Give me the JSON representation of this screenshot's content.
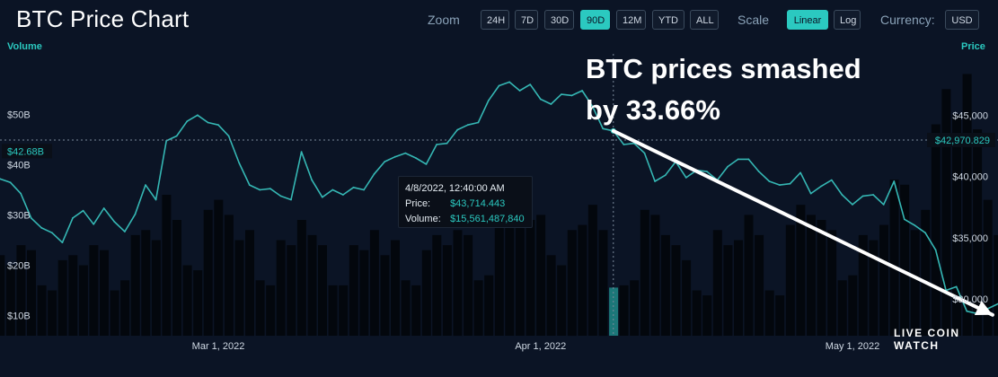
{
  "header": {
    "title": "BTC Price Chart",
    "zoom_label": "Zoom",
    "zoom_options": [
      "24H",
      "7D",
      "30D",
      "90D",
      "12M",
      "YTD",
      "ALL"
    ],
    "zoom_selected": "90D",
    "scale_label": "Scale",
    "scale_options": [
      "Linear",
      "Log"
    ],
    "scale_selected": "Linear",
    "currency_label": "Currency:",
    "currency_value": "USD"
  },
  "colors": {
    "background": "#0b1425",
    "accent": "#2bc9c0",
    "price_line": "#35b7b4",
    "volume_bars": "#03070d",
    "annotation_arrow": "#ffffff"
  },
  "tooltip": {
    "datetime": "4/8/2022, 12:40:00 AM",
    "price_label": "Price:",
    "price_value": "$43,714.443",
    "volume_label": "Volume:",
    "volume_value": "$15,561,487,840"
  },
  "annotation": {
    "line1": "BTC prices smashed",
    "line2": "by 33.66%"
  },
  "watermark": "LIVE COIN WATCH",
  "chart_data": {
    "type": "line",
    "title": "BTC Price Chart",
    "x_range": [
      "2022-02-08",
      "2022-05-15"
    ],
    "x_tick_labels": [
      {
        "date": "2022-03-01",
        "label": "Mar 1, 2022"
      },
      {
        "date": "2022-04-01",
        "label": "Apr 1, 2022"
      },
      {
        "date": "2022-05-01",
        "label": "May 1, 2022"
      }
    ],
    "left_axis": {
      "title": "Volume",
      "range": [
        6000000000,
        62000000000
      ],
      "tick_labels": [
        {
          "value": 10000000000,
          "label": "$10B"
        },
        {
          "value": 20000000000,
          "label": "$20B"
        },
        {
          "value": 30000000000,
          "label": "$30B"
        },
        {
          "value": 40000000000,
          "label": "$40B"
        },
        {
          "value": 50000000000,
          "label": "$50B"
        }
      ],
      "marker": {
        "value": 42680000000,
        "label": "$42.68B"
      }
    },
    "right_axis": {
      "title": "Price",
      "range": [
        27000,
        50000
      ],
      "tick_labels": [
        {
          "value": 30000,
          "label": "$30,000"
        },
        {
          "value": 35000,
          "label": "$35,000"
        },
        {
          "value": 40000,
          "label": "$40,000"
        },
        {
          "value": 45000,
          "label": "$45,000"
        }
      ],
      "marker": {
        "value": 42970.829,
        "label": "$42,970.829"
      }
    },
    "crosshair_date": "2022-04-08",
    "series": [
      {
        "name": "Price",
        "points": [
          [
            "2022-02-08",
            39800
          ],
          [
            "2022-02-09",
            39500
          ],
          [
            "2022-02-10",
            38600
          ],
          [
            "2022-02-11",
            36600
          ],
          [
            "2022-02-12",
            35800
          ],
          [
            "2022-02-13",
            35400
          ],
          [
            "2022-02-14",
            34600
          ],
          [
            "2022-02-15",
            36600
          ],
          [
            "2022-02-16",
            37200
          ],
          [
            "2022-02-17",
            36100
          ],
          [
            "2022-02-18",
            37400
          ],
          [
            "2022-02-19",
            36300
          ],
          [
            "2022-02-20",
            35500
          ],
          [
            "2022-02-21",
            36900
          ],
          [
            "2022-02-22",
            39300
          ],
          [
            "2022-02-23",
            38100
          ],
          [
            "2022-02-24",
            42900
          ],
          [
            "2022-02-25",
            43300
          ],
          [
            "2022-02-26",
            44500
          ],
          [
            "2022-02-27",
            45000
          ],
          [
            "2022-02-28",
            44400
          ],
          [
            "2022-03-01",
            44200
          ],
          [
            "2022-03-02",
            43300
          ],
          [
            "2022-03-03",
            41100
          ],
          [
            "2022-03-04",
            39300
          ],
          [
            "2022-03-05",
            38900
          ],
          [
            "2022-03-06",
            39000
          ],
          [
            "2022-03-07",
            38400
          ],
          [
            "2022-03-08",
            38100
          ],
          [
            "2022-03-09",
            42000
          ],
          [
            "2022-03-10",
            39700
          ],
          [
            "2022-03-11",
            38300
          ],
          [
            "2022-03-12",
            38900
          ],
          [
            "2022-03-13",
            38500
          ],
          [
            "2022-03-14",
            39100
          ],
          [
            "2022-03-15",
            38900
          ],
          [
            "2022-03-16",
            40200
          ],
          [
            "2022-03-17",
            41200
          ],
          [
            "2022-03-18",
            41600
          ],
          [
            "2022-03-19",
            41900
          ],
          [
            "2022-03-20",
            41500
          ],
          [
            "2022-03-21",
            41000
          ],
          [
            "2022-03-22",
            42600
          ],
          [
            "2022-03-23",
            42700
          ],
          [
            "2022-03-24",
            43800
          ],
          [
            "2022-03-25",
            44200
          ],
          [
            "2022-03-26",
            44400
          ],
          [
            "2022-03-27",
            46200
          ],
          [
            "2022-03-28",
            47400
          ],
          [
            "2022-03-29",
            47700
          ],
          [
            "2022-03-30",
            47000
          ],
          [
            "2022-03-31",
            47500
          ],
          [
            "2022-04-01",
            46300
          ],
          [
            "2022-04-02",
            45900
          ],
          [
            "2022-04-03",
            46700
          ],
          [
            "2022-04-04",
            46600
          ],
          [
            "2022-04-05",
            47000
          ],
          [
            "2022-04-06",
            45700
          ],
          [
            "2022-04-07",
            43900
          ],
          [
            "2022-04-08",
            43714
          ],
          [
            "2022-04-09",
            42600
          ],
          [
            "2022-04-10",
            42700
          ],
          [
            "2022-04-11",
            41900
          ],
          [
            "2022-04-12",
            39600
          ],
          [
            "2022-04-13",
            40100
          ],
          [
            "2022-04-14",
            41200
          ],
          [
            "2022-04-15",
            39900
          ],
          [
            "2022-04-16",
            40500
          ],
          [
            "2022-04-17",
            40400
          ],
          [
            "2022-04-18",
            39700
          ],
          [
            "2022-04-19",
            40800
          ],
          [
            "2022-04-20",
            41400
          ],
          [
            "2022-04-21",
            41400
          ],
          [
            "2022-04-22",
            40400
          ],
          [
            "2022-04-23",
            39600
          ],
          [
            "2022-04-24",
            39300
          ],
          [
            "2022-04-25",
            39400
          ],
          [
            "2022-04-26",
            40300
          ],
          [
            "2022-04-27",
            38600
          ],
          [
            "2022-04-28",
            39200
          ],
          [
            "2022-04-29",
            39700
          ],
          [
            "2022-04-30",
            38500
          ],
          [
            "2022-05-01",
            37700
          ],
          [
            "2022-05-02",
            38400
          ],
          [
            "2022-05-03",
            38500
          ],
          [
            "2022-05-04",
            37700
          ],
          [
            "2022-05-05",
            39600
          ],
          [
            "2022-05-06",
            36500
          ],
          [
            "2022-05-07",
            36000
          ],
          [
            "2022-05-08",
            35400
          ],
          [
            "2022-05-09",
            34000
          ],
          [
            "2022-05-10",
            30700
          ],
          [
            "2022-05-11",
            31000
          ],
          [
            "2022-05-12",
            29000
          ],
          [
            "2022-05-13",
            28800
          ],
          [
            "2022-05-14",
            29200
          ],
          [
            "2022-05-15",
            29600
          ]
        ]
      },
      {
        "name": "Volume",
        "type": "bar",
        "points": [
          [
            "2022-02-08",
            22000000000
          ],
          [
            "2022-02-09",
            20000000000
          ],
          [
            "2022-02-10",
            24000000000
          ],
          [
            "2022-02-11",
            23000000000
          ],
          [
            "2022-02-12",
            16000000000
          ],
          [
            "2022-02-13",
            15000000000
          ],
          [
            "2022-02-14",
            21000000000
          ],
          [
            "2022-02-15",
            22000000000
          ],
          [
            "2022-02-16",
            20000000000
          ],
          [
            "2022-02-17",
            24000000000
          ],
          [
            "2022-02-18",
            23000000000
          ],
          [
            "2022-02-19",
            15000000000
          ],
          [
            "2022-02-20",
            17000000000
          ],
          [
            "2022-02-21",
            26000000000
          ],
          [
            "2022-02-22",
            27000000000
          ],
          [
            "2022-02-23",
            25000000000
          ],
          [
            "2022-02-24",
            34000000000
          ],
          [
            "2022-02-25",
            29000000000
          ],
          [
            "2022-02-26",
            20000000000
          ],
          [
            "2022-02-27",
            19000000000
          ],
          [
            "2022-02-28",
            31000000000
          ],
          [
            "2022-03-01",
            33000000000
          ],
          [
            "2022-03-02",
            30000000000
          ],
          [
            "2022-03-03",
            25000000000
          ],
          [
            "2022-03-04",
            27000000000
          ],
          [
            "2022-03-05",
            17000000000
          ],
          [
            "2022-03-06",
            16000000000
          ],
          [
            "2022-03-07",
            25000000000
          ],
          [
            "2022-03-08",
            24000000000
          ],
          [
            "2022-03-09",
            29000000000
          ],
          [
            "2022-03-10",
            26000000000
          ],
          [
            "2022-03-11",
            24000000000
          ],
          [
            "2022-03-12",
            16000000000
          ],
          [
            "2022-03-13",
            16000000000
          ],
          [
            "2022-03-14",
            24000000000
          ],
          [
            "2022-03-15",
            23000000000
          ],
          [
            "2022-03-16",
            27000000000
          ],
          [
            "2022-03-17",
            22000000000
          ],
          [
            "2022-03-18",
            25000000000
          ],
          [
            "2022-03-19",
            17000000000
          ],
          [
            "2022-03-20",
            16000000000
          ],
          [
            "2022-03-21",
            23000000000
          ],
          [
            "2022-03-22",
            26000000000
          ],
          [
            "2022-03-23",
            24000000000
          ],
          [
            "2022-03-24",
            27000000000
          ],
          [
            "2022-03-25",
            26000000000
          ],
          [
            "2022-03-26",
            17000000000
          ],
          [
            "2022-03-27",
            18000000000
          ],
          [
            "2022-03-28",
            30000000000
          ],
          [
            "2022-03-29",
            31000000000
          ],
          [
            "2022-03-30",
            28000000000
          ],
          [
            "2022-03-31",
            29000000000
          ],
          [
            "2022-04-01",
            30000000000
          ],
          [
            "2022-04-02",
            22000000000
          ],
          [
            "2022-04-03",
            20000000000
          ],
          [
            "2022-04-04",
            27000000000
          ],
          [
            "2022-04-05",
            28000000000
          ],
          [
            "2022-04-06",
            32000000000
          ],
          [
            "2022-04-07",
            27000000000
          ],
          [
            "2022-04-08",
            15561487840
          ],
          [
            "2022-04-09",
            16000000000
          ],
          [
            "2022-04-10",
            17000000000
          ],
          [
            "2022-04-11",
            31000000000
          ],
          [
            "2022-04-12",
            30000000000
          ],
          [
            "2022-04-13",
            26000000000
          ],
          [
            "2022-04-14",
            24000000000
          ],
          [
            "2022-04-15",
            21000000000
          ],
          [
            "2022-04-16",
            15000000000
          ],
          [
            "2022-04-17",
            14000000000
          ],
          [
            "2022-04-18",
            27000000000
          ],
          [
            "2022-04-19",
            24000000000
          ],
          [
            "2022-04-20",
            25000000000
          ],
          [
            "2022-04-21",
            30000000000
          ],
          [
            "2022-04-22",
            26000000000
          ],
          [
            "2022-04-23",
            15000000000
          ],
          [
            "2022-04-24",
            14000000000
          ],
          [
            "2022-04-25",
            28000000000
          ],
          [
            "2022-04-26",
            32000000000
          ],
          [
            "2022-04-27",
            30000000000
          ],
          [
            "2022-04-28",
            29000000000
          ],
          [
            "2022-04-29",
            27000000000
          ],
          [
            "2022-04-30",
            17000000000
          ],
          [
            "2022-05-01",
            18000000000
          ],
          [
            "2022-05-02",
            26000000000
          ],
          [
            "2022-05-03",
            25000000000
          ],
          [
            "2022-05-04",
            28000000000
          ],
          [
            "2022-05-05",
            37000000000
          ],
          [
            "2022-05-06",
            36000000000
          ],
          [
            "2022-05-07",
            27000000000
          ],
          [
            "2022-05-08",
            31000000000
          ],
          [
            "2022-05-09",
            48000000000
          ],
          [
            "2022-05-10",
            55000000000
          ],
          [
            "2022-05-11",
            50000000000
          ],
          [
            "2022-05-12",
            58000000000
          ],
          [
            "2022-05-13",
            47000000000
          ],
          [
            "2022-05-14",
            33000000000
          ],
          [
            "2022-05-15",
            26000000000
          ]
        ]
      }
    ],
    "annotation_arrow": {
      "from": [
        "2022-04-08",
        43714
      ],
      "to": [
        "2022-05-15",
        28700
      ]
    },
    "grid": false
  }
}
